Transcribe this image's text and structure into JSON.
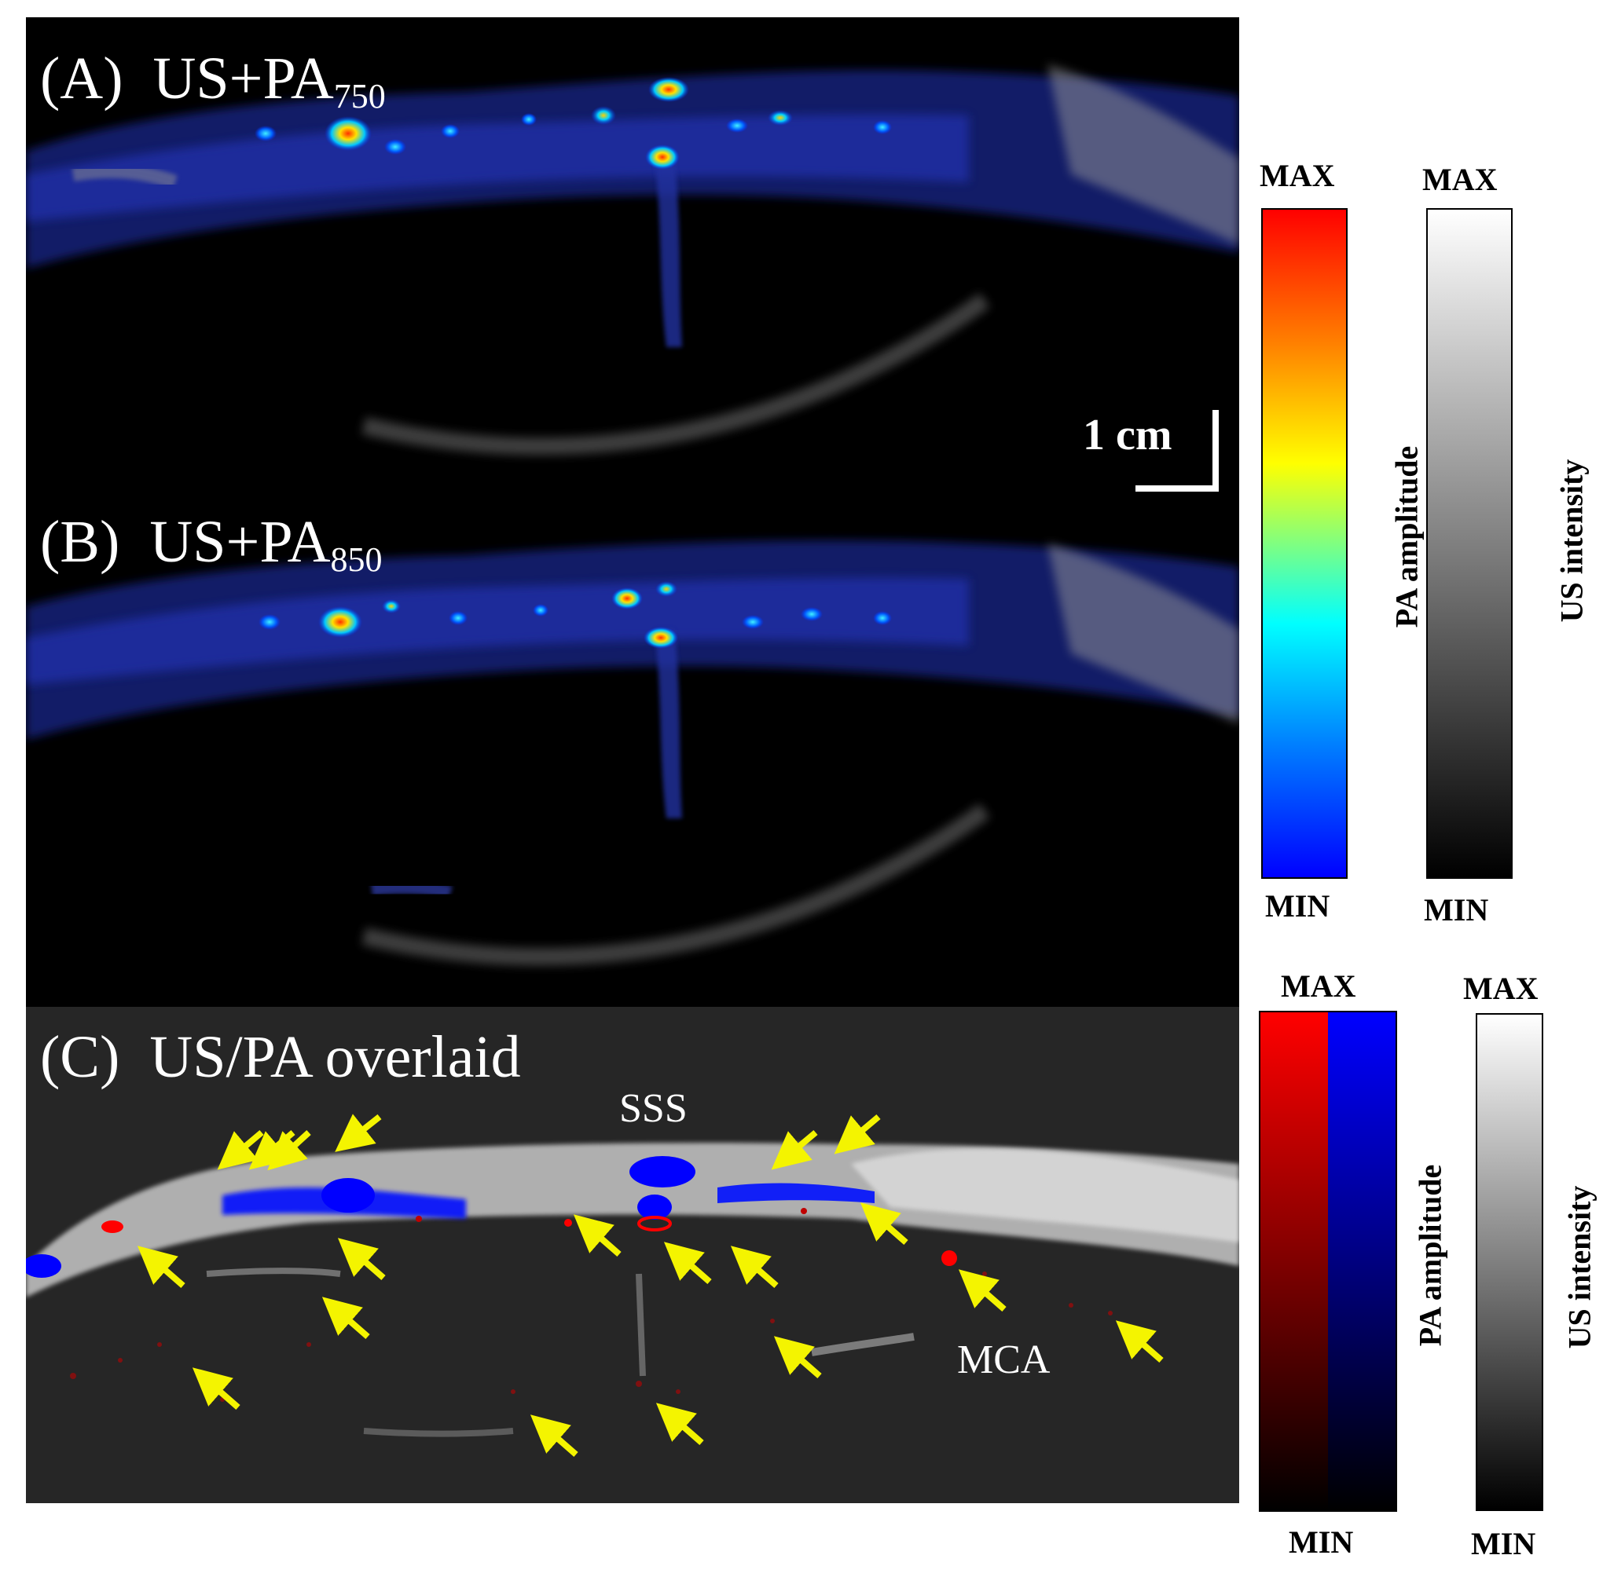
{
  "panels": [
    {
      "id": "A",
      "label": "(A)",
      "title": "US+PA",
      "sub": "750"
    },
    {
      "id": "B",
      "label": "(B)",
      "title": "US+PA",
      "sub": "850"
    },
    {
      "id": "C",
      "label": "(C)",
      "title": "US/PA overlaid",
      "sub": ""
    }
  ],
  "scale_bar": {
    "label": "1 cm"
  },
  "colorbars": {
    "pa_top": {
      "max": "MAX",
      "min": "MIN",
      "title": "PA amplitude"
    },
    "us_top": {
      "max": "MAX",
      "min": "MIN",
      "title": "US intensity"
    },
    "pa_bottom": {
      "max": "MAX",
      "min": "MIN",
      "title": "PA amplitude"
    },
    "us_bottom": {
      "max": "MAX",
      "min": "MIN",
      "title": "US intensity"
    }
  },
  "annotations": {
    "sss": "SSS",
    "mca": "MCA"
  },
  "colors": {
    "arrow": "#f4f400",
    "pa_red": "#ff0000",
    "pa_blue": "#0000ff",
    "panel_c_bg": "#262626"
  }
}
